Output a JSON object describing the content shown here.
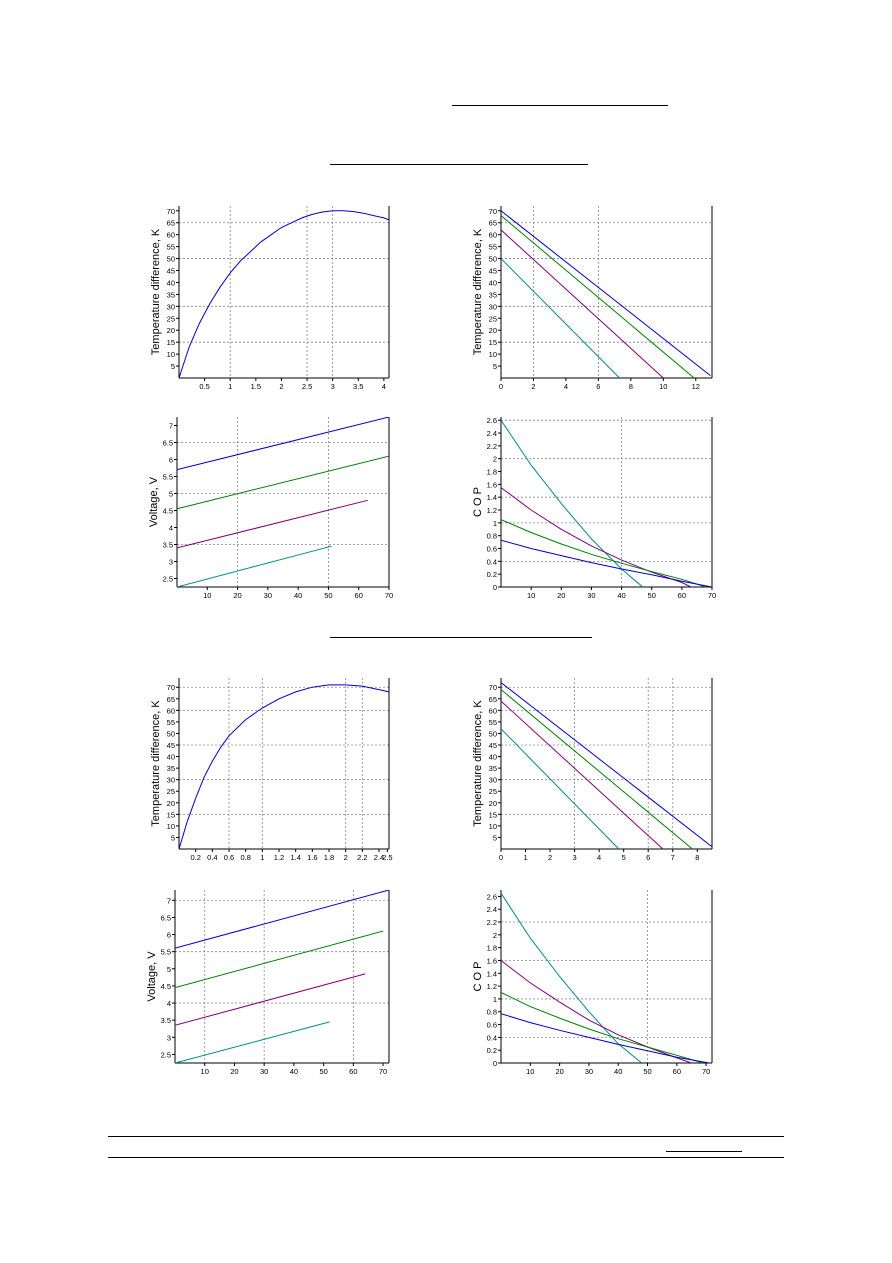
{
  "colors": {
    "blue": "#0000cc",
    "green": "#008000",
    "purple": "#800080",
    "teal": "#008b8b",
    "grid": "#888888",
    "axis": "#000000"
  },
  "chart_data": [
    {
      "id": "s1-dt-current",
      "type": "line",
      "ylabel": "Temperature difference, K",
      "xlim": [
        0,
        4.1
      ],
      "ylim": [
        0,
        72
      ],
      "xticks": [
        0.5,
        1,
        1.5,
        2,
        2.5,
        3,
        3.5,
        4
      ],
      "yticks": [
        5,
        10,
        15,
        20,
        25,
        30,
        35,
        40,
        45,
        50,
        55,
        60,
        65,
        70
      ],
      "xgrid": [
        1,
        2.5,
        3
      ],
      "ygrid": [
        15,
        30,
        50,
        65
      ],
      "series": [
        {
          "color": "blue",
          "x": [
            0,
            0.2,
            0.4,
            0.6,
            0.8,
            1.0,
            1.2,
            1.4,
            1.6,
            1.8,
            2.0,
            2.2,
            2.4,
            2.6,
            2.8,
            3.0,
            3.2,
            3.4,
            3.6,
            3.8,
            4.0,
            4.1
          ],
          "y": [
            0,
            13,
            23,
            31,
            38,
            44,
            49,
            53,
            57,
            60,
            63,
            65,
            67,
            68.5,
            69.5,
            70,
            70,
            69.7,
            69,
            68,
            67,
            66.2
          ]
        }
      ]
    },
    {
      "id": "s1-dt-q",
      "type": "line",
      "ylabel": "Temperature difference, K",
      "xlim": [
        0,
        13
      ],
      "ylim": [
        0,
        72
      ],
      "xticks": [
        0,
        2,
        4,
        6,
        8,
        10,
        12
      ],
      "yticks": [
        5,
        10,
        15,
        20,
        25,
        30,
        35,
        40,
        45,
        50,
        55,
        60,
        65,
        70
      ],
      "xgrid": [
        2,
        6
      ],
      "ygrid": [
        15,
        30,
        50,
        65
      ],
      "series": [
        {
          "color": "blue",
          "x": [
            0,
            12.9
          ],
          "y": [
            70,
            1
          ]
        },
        {
          "color": "green",
          "x": [
            0,
            11.9
          ],
          "y": [
            68,
            0
          ]
        },
        {
          "color": "purple",
          "x": [
            0,
            10
          ],
          "y": [
            62,
            0
          ]
        },
        {
          "color": "teal",
          "x": [
            0,
            7.3
          ],
          "y": [
            50,
            0
          ]
        }
      ]
    },
    {
      "id": "s1-voltage",
      "type": "line",
      "ylabel": "Voltage, V",
      "xlim": [
        0,
        70
      ],
      "ylim": [
        2.25,
        7.25
      ],
      "xticks": [
        10,
        20,
        30,
        40,
        50,
        60,
        70
      ],
      "yticks": [
        2.5,
        3,
        3.5,
        4,
        4.5,
        5,
        5.5,
        6,
        6.5,
        7
      ],
      "xgrid": [
        20,
        50
      ],
      "ygrid": [
        3.5,
        5,
        6.5
      ],
      "series": [
        {
          "color": "blue",
          "x": [
            0,
            70
          ],
          "y": [
            5.7,
            7.25
          ]
        },
        {
          "color": "green",
          "x": [
            0,
            70
          ],
          "y": [
            4.55,
            6.1
          ]
        },
        {
          "color": "purple",
          "x": [
            0,
            63
          ],
          "y": [
            3.4,
            4.8
          ]
        },
        {
          "color": "teal",
          "x": [
            0,
            51
          ],
          "y": [
            2.25,
            3.45
          ]
        }
      ]
    },
    {
      "id": "s1-cop",
      "type": "line",
      "ylabel": "C O P",
      "xlim": [
        0,
        70
      ],
      "ylim": [
        0,
        2.65
      ],
      "xticks": [
        10,
        20,
        30,
        40,
        50,
        60,
        70
      ],
      "yticks": [
        0,
        0.2,
        0.4,
        0.6,
        0.8,
        1,
        1.2,
        1.4,
        1.6,
        1.8,
        2,
        2.2,
        2.4,
        2.6
      ],
      "yticklabels": [
        "0",
        "0.2",
        "0.4",
        "0.6",
        "0.8",
        "1",
        "1.2",
        "1.4",
        "1.6",
        "1.8",
        "2",
        "2.2",
        "2.4",
        "2.6"
      ],
      "xgrid": [
        40
      ],
      "ygrid": [
        0.4,
        1,
        1.4,
        2,
        2.6
      ],
      "series": [
        {
          "color": "teal",
          "x": [
            0,
            10,
            20,
            30,
            40,
            47
          ],
          "y": [
            2.6,
            1.9,
            1.3,
            0.75,
            0.28,
            0
          ]
        },
        {
          "color": "purple",
          "x": [
            0,
            10,
            20,
            30,
            40,
            50,
            60,
            63
          ],
          "y": [
            1.55,
            1.2,
            0.9,
            0.64,
            0.42,
            0.23,
            0.07,
            0
          ]
        },
        {
          "color": "green",
          "x": [
            0,
            10,
            20,
            30,
            40,
            50,
            60,
            68
          ],
          "y": [
            1.05,
            0.85,
            0.67,
            0.51,
            0.37,
            0.24,
            0.12,
            0
          ]
        },
        {
          "color": "blue",
          "x": [
            0,
            10,
            20,
            30,
            40,
            50,
            60,
            70
          ],
          "y": [
            0.73,
            0.6,
            0.49,
            0.38,
            0.28,
            0.19,
            0.09,
            0
          ]
        }
      ]
    },
    {
      "id": "s2-dt-current",
      "type": "line",
      "ylabel": "Temperature difference, K",
      "xlim": [
        0,
        2.52
      ],
      "ylim": [
        0,
        74
      ],
      "xticks": [
        0.2,
        0.4,
        0.6,
        0.8,
        1,
        1.2,
        1.4,
        1.6,
        1.8,
        2,
        2.2,
        2.4,
        2.5
      ],
      "yticks": [
        5,
        10,
        15,
        20,
        25,
        30,
        35,
        40,
        45,
        50,
        55,
        60,
        65,
        70
      ],
      "xgrid": [
        0.6,
        1,
        2,
        2.2
      ],
      "ygrid": [
        15,
        30,
        45,
        60,
        70
      ],
      "series": [
        {
          "color": "blue",
          "x": [
            0,
            0.1,
            0.2,
            0.3,
            0.4,
            0.5,
            0.6,
            0.8,
            1.0,
            1.2,
            1.4,
            1.6,
            1.8,
            2.0,
            2.2,
            2.4,
            2.52
          ],
          "y": [
            0,
            12,
            22,
            31,
            38,
            44,
            49,
            56,
            61,
            65,
            68,
            70,
            71,
            71,
            70.5,
            69,
            68
          ]
        }
      ]
    },
    {
      "id": "s2-dt-q",
      "type": "line",
      "ylabel": "Temperature difference, K",
      "xlim": [
        0,
        8.6
      ],
      "ylim": [
        0,
        74
      ],
      "xticks": [
        0,
        1,
        2,
        3,
        4,
        5,
        6,
        7,
        8
      ],
      "yticks": [
        5,
        10,
        15,
        20,
        25,
        30,
        35,
        40,
        45,
        50,
        55,
        60,
        65,
        70
      ],
      "xgrid": [
        3,
        6,
        7
      ],
      "ygrid": [
        15,
        30,
        45,
        60,
        70
      ],
      "series": [
        {
          "color": "blue",
          "x": [
            0,
            8.6
          ],
          "y": [
            72,
            1
          ]
        },
        {
          "color": "green",
          "x": [
            0,
            7.8
          ],
          "y": [
            69,
            0
          ]
        },
        {
          "color": "purple",
          "x": [
            0,
            6.6
          ],
          "y": [
            64,
            0
          ]
        },
        {
          "color": "teal",
          "x": [
            0,
            4.8
          ],
          "y": [
            52,
            0
          ]
        }
      ]
    },
    {
      "id": "s2-voltage",
      "type": "line",
      "ylabel": "Voltage, V",
      "xlim": [
        0,
        72
      ],
      "ylim": [
        2.25,
        7.3
      ],
      "xticks": [
        10,
        20,
        30,
        40,
        50,
        60,
        70
      ],
      "yticks": [
        2.5,
        3,
        3.5,
        4,
        4.5,
        5,
        5.5,
        6,
        6.5,
        7
      ],
      "xgrid": [
        10,
        30,
        60
      ],
      "ygrid": [
        4,
        5.5,
        7
      ],
      "series": [
        {
          "color": "blue",
          "x": [
            0,
            72
          ],
          "y": [
            5.6,
            7.3
          ]
        },
        {
          "color": "green",
          "x": [
            0,
            70
          ],
          "y": [
            4.45,
            6.1
          ]
        },
        {
          "color": "purple",
          "x": [
            0,
            64
          ],
          "y": [
            3.35,
            4.85
          ]
        },
        {
          "color": "teal",
          "x": [
            0,
            52
          ],
          "y": [
            2.25,
            3.45
          ]
        }
      ]
    },
    {
      "id": "s2-cop",
      "type": "line",
      "ylabel": "C O P",
      "xlim": [
        0,
        72
      ],
      "ylim": [
        0,
        2.7
      ],
      "xticks": [
        10,
        20,
        30,
        40,
        50,
        60,
        70
      ],
      "yticks": [
        0,
        0.2,
        0.4,
        0.6,
        0.8,
        1,
        1.2,
        1.4,
        1.6,
        1.8,
        2,
        2.2,
        2.4,
        2.6
      ],
      "yticklabels": [
        "0",
        "0.2",
        "0.4",
        "0.6",
        "0.8",
        "1",
        "1.2",
        "1.4",
        "1.6",
        "1.8",
        "2",
        "2.2",
        "2.4",
        "2.6"
      ],
      "xgrid": [
        50
      ],
      "ygrid": [
        0.4,
        1,
        1.6,
        2.2
      ],
      "series": [
        {
          "color": "teal",
          "x": [
            0,
            10,
            20,
            30,
            40,
            48
          ],
          "y": [
            2.65,
            1.95,
            1.35,
            0.8,
            0.3,
            0
          ]
        },
        {
          "color": "purple",
          "x": [
            0,
            10,
            20,
            30,
            40,
            50,
            60,
            65
          ],
          "y": [
            1.6,
            1.25,
            0.95,
            0.67,
            0.44,
            0.25,
            0.08,
            0
          ]
        },
        {
          "color": "green",
          "x": [
            0,
            10,
            20,
            30,
            40,
            50,
            60,
            69
          ],
          "y": [
            1.1,
            0.88,
            0.7,
            0.53,
            0.38,
            0.25,
            0.12,
            0
          ]
        },
        {
          "color": "blue",
          "x": [
            0,
            10,
            20,
            30,
            40,
            50,
            60,
            71
          ],
          "y": [
            0.77,
            0.63,
            0.51,
            0.4,
            0.29,
            0.19,
            0.09,
            0
          ]
        }
      ]
    }
  ]
}
